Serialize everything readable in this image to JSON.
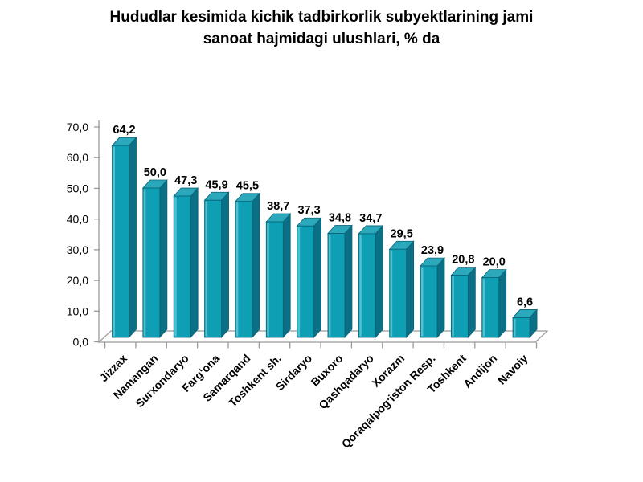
{
  "title": {
    "line1": "Hududlar kesimida kichik tadbirkorlik subyektlarining jami",
    "line2": "sanoat hajmidagi ulushlari, % da"
  },
  "chart_data": {
    "type": "bar",
    "style": "3d-column",
    "title": "Hududlar kesimida kichik tadbirkorlik subyektlarining jami sanoat hajmidagi ulushlari, % da",
    "categories": [
      "Jizzax",
      "Namangan",
      "Surxondaryo",
      "Farg‘ona",
      "Samarqand",
      "Toshkent sh.",
      "Sirdaryo",
      "Buxoro",
      "Qashqadaryo",
      "Xorazm",
      "Qoraqalpog‘iston Resp.",
      "Toshkent",
      "Andijon",
      "Navoiy"
    ],
    "values": [
      64.2,
      50.0,
      47.3,
      45.9,
      45.5,
      38.7,
      37.3,
      34.8,
      34.7,
      29.5,
      23.9,
      20.8,
      20.0,
      6.6
    ],
    "value_labels": [
      "64,2",
      "50,0",
      "47,3",
      "45,9",
      "45,5",
      "38,7",
      "37,3",
      "34,8",
      "34,7",
      "29,5",
      "23,9",
      "20,8",
      "20,0",
      "6,6"
    ],
    "xlabel": "",
    "ylabel": "",
    "ylim": [
      0,
      70
    ],
    "ytick_step": 10,
    "ytick_labels": [
      "0,0",
      "10,0",
      "20,0",
      "30,0",
      "40,0",
      "50,0",
      "60,0",
      "70,0"
    ],
    "grid": false,
    "legend_position": "none",
    "colors": {
      "bar_front": "#0f9fb5",
      "bar_top": "#2ba8bb",
      "bar_side": "#0b7086",
      "bar_highlight": "#5ec5d2",
      "bar_stroke": "#0a6174",
      "axis": "#9a9a9a",
      "text": "#000000",
      "background": "#ffffff"
    }
  }
}
